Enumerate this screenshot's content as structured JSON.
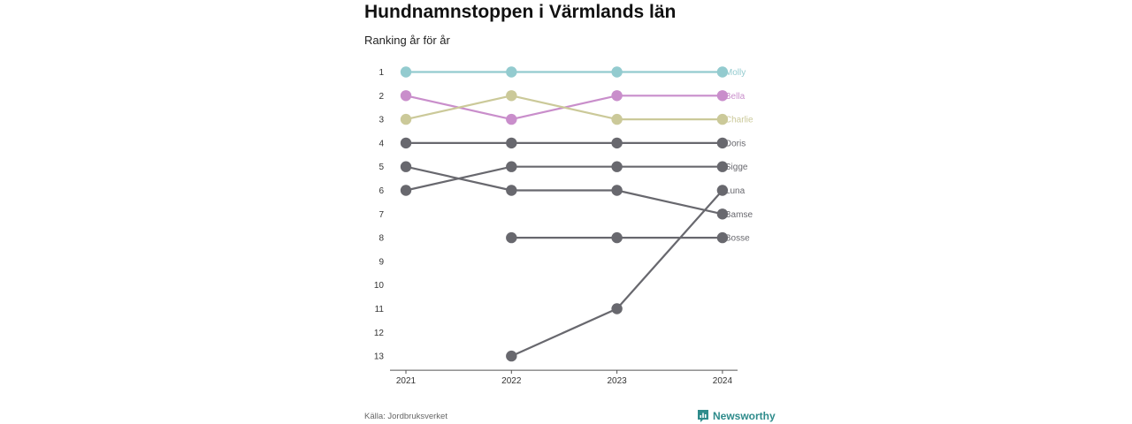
{
  "header": {
    "title": "Hundnamnstoppen i Värmlands län",
    "subtitle": "Ranking år för år"
  },
  "footer": {
    "source": "Källa: Jordbruksverket",
    "brand": "Newsworthy",
    "brand_icon": "newsworthy-logo-icon"
  },
  "colors": {
    "Molly": "#93cbcf",
    "Bella": "#c98ecb",
    "Charlie": "#cbc999",
    "default": "#68686e",
    "axis": "#555555",
    "brand": "#2e8b8b"
  },
  "chart_data": {
    "type": "line",
    "x": [
      "2021",
      "2022",
      "2023",
      "2024"
    ],
    "y_ticks": [
      "1",
      "2",
      "3",
      "4",
      "5",
      "6",
      "7",
      "8",
      "9",
      "10",
      "11",
      "12",
      "13"
    ],
    "ylim": [
      1,
      13
    ],
    "y_inverted": true,
    "series": [
      {
        "name": "Molly",
        "values": [
          1,
          1,
          1,
          1
        ]
      },
      {
        "name": "Bella",
        "values": [
          2,
          3,
          2,
          2
        ]
      },
      {
        "name": "Charlie",
        "values": [
          3,
          2,
          3,
          3
        ]
      },
      {
        "name": "Doris",
        "values": [
          4,
          4,
          4,
          4
        ]
      },
      {
        "name": "Sigge",
        "values": [
          6,
          5,
          5,
          5
        ]
      },
      {
        "name": "Luna",
        "values": [
          null,
          13,
          11,
          6
        ]
      },
      {
        "name": "Bamse",
        "values": [
          5,
          6,
          6,
          7
        ]
      },
      {
        "name": "Bosse",
        "values": [
          null,
          8,
          8,
          8
        ]
      }
    ]
  }
}
